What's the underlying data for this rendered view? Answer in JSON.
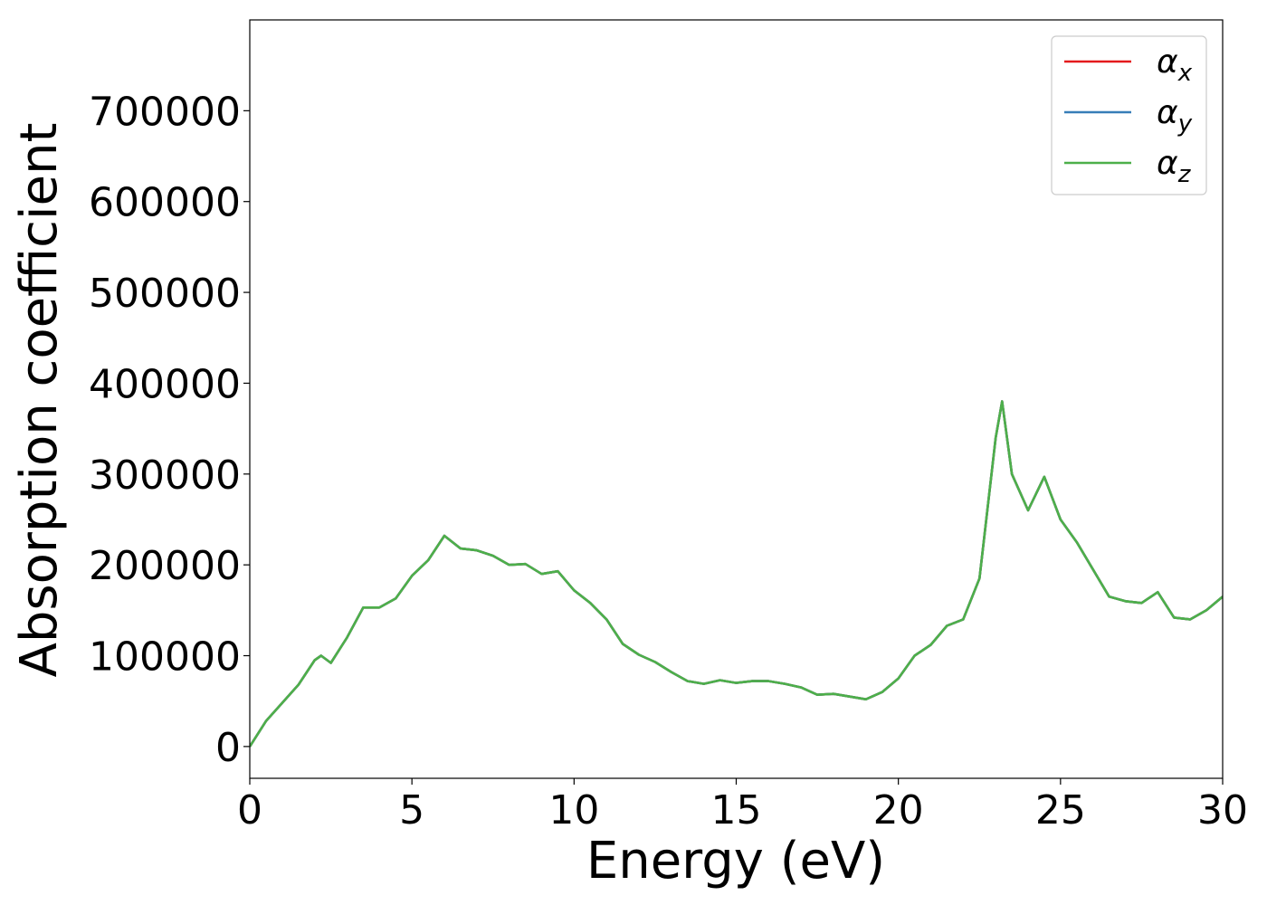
{
  "chart_data": {
    "type": "line",
    "xlabel": "Energy (eV)",
    "ylabel": "Absorption coefficient",
    "xlim": [
      0,
      30
    ],
    "ylim": [
      -35000,
      800000
    ],
    "xticks": [
      0,
      5,
      10,
      15,
      20,
      25,
      30
    ],
    "yticks": [
      0,
      100000,
      200000,
      300000,
      400000,
      500000,
      600000,
      700000
    ],
    "xtick_labels": [
      "0",
      "5",
      "10",
      "15",
      "20",
      "25",
      "30"
    ],
    "ytick_labels": [
      "0",
      "100000",
      "200000",
      "300000",
      "400000",
      "500000",
      "600000",
      "700000"
    ],
    "grid": false,
    "legend_position": "top-right",
    "legend": [
      {
        "base": "α",
        "sub": "x",
        "color": "#e41a1c"
      },
      {
        "base": "α",
        "sub": "y",
        "color": "#377eb8"
      },
      {
        "base": "α",
        "sub": "z",
        "color": "#4daf4a"
      }
    ],
    "x": [
      0,
      0.5,
      1.0,
      1.5,
      2.0,
      2.2,
      2.5,
      3.0,
      3.5,
      4.0,
      4.5,
      5.0,
      5.5,
      6.0,
      6.5,
      7.0,
      7.5,
      8.0,
      8.5,
      9.0,
      9.5,
      10.0,
      10.5,
      11.0,
      11.5,
      12.0,
      12.5,
      13.0,
      13.5,
      14.0,
      14.5,
      15.0,
      15.5,
      16.0,
      16.5,
      17.0,
      17.5,
      18.0,
      18.5,
      19.0,
      19.5,
      20.0,
      20.5,
      21.0,
      21.5,
      22.0,
      22.5,
      23.0,
      23.2,
      23.5,
      24.0,
      24.5,
      25.0,
      25.5,
      26.0,
      26.5,
      27.0,
      27.5,
      28.0,
      28.5,
      29.0,
      29.5,
      30.0
    ],
    "series": [
      {
        "name": "αx",
        "color": "#e41a1c",
        "values": [
          0,
          28000,
          48000,
          68000,
          95000,
          100000,
          92000,
          120000,
          153000,
          153000,
          163000,
          188000,
          205000,
          232000,
          218000,
          216000,
          210000,
          200000,
          201000,
          190000,
          193000,
          172000,
          158000,
          140000,
          113000,
          101000,
          93000,
          82000,
          72000,
          69000,
          73000,
          70000,
          72000,
          72000,
          69000,
          65000,
          57000,
          58000,
          55000,
          52000,
          60000,
          75000,
          100000,
          112000,
          133000,
          140000,
          185000,
          340000,
          380000,
          300000,
          260000,
          297000,
          250000,
          225000,
          195000,
          165000,
          160000,
          158000,
          170000,
          142000,
          140000,
          150000,
          165000
        ]
      },
      {
        "name": "αy",
        "color": "#377eb8",
        "values": [
          0,
          28000,
          48000,
          68000,
          95000,
          100000,
          92000,
          120000,
          153000,
          153000,
          163000,
          188000,
          205000,
          232000,
          218000,
          216000,
          210000,
          200000,
          201000,
          190000,
          193000,
          172000,
          158000,
          140000,
          113000,
          101000,
          93000,
          82000,
          72000,
          69000,
          73000,
          70000,
          72000,
          72000,
          69000,
          65000,
          57000,
          58000,
          55000,
          52000,
          60000,
          75000,
          100000,
          112000,
          133000,
          140000,
          185000,
          340000,
          380000,
          300000,
          260000,
          297000,
          250000,
          225000,
          195000,
          165000,
          160000,
          158000,
          170000,
          142000,
          140000,
          150000,
          165000
        ]
      },
      {
        "name": "αz",
        "color": "#4daf4a",
        "values": [
          0,
          28000,
          48000,
          68000,
          95000,
          100000,
          92000,
          120000,
          153000,
          153000,
          163000,
          188000,
          205000,
          232000,
          218000,
          216000,
          210000,
          200000,
          201000,
          190000,
          193000,
          172000,
          158000,
          140000,
          113000,
          101000,
          93000,
          82000,
          72000,
          69000,
          73000,
          70000,
          72000,
          72000,
          69000,
          65000,
          57000,
          58000,
          55000,
          52000,
          60000,
          75000,
          100000,
          112000,
          133000,
          140000,
          185000,
          340000,
          380000,
          300000,
          260000,
          297000,
          250000,
          225000,
          195000,
          165000,
          160000,
          158000,
          170000,
          142000,
          140000,
          150000,
          165000
        ]
      }
    ]
  }
}
